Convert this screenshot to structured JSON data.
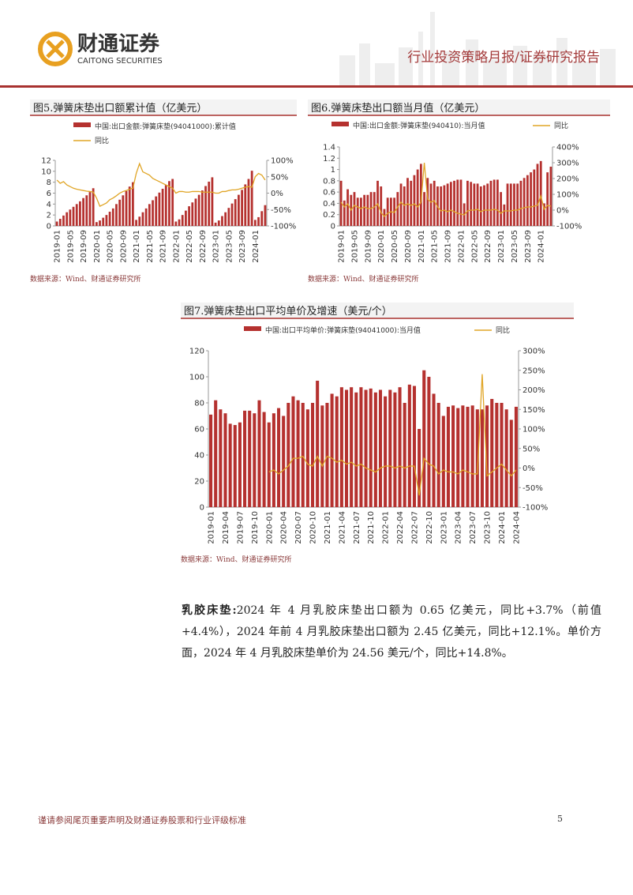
{
  "header": {
    "company": "财通证券",
    "company_en": "CAITONG SECURITIES",
    "report_type": "行业投资策略月报/证券研究报告"
  },
  "chart_data": [
    {
      "type": "combo",
      "title": "图5.弹簧床垫出口额累计值（亿美元）",
      "note": "数据来源：Wind、财通证券研究所",
      "categories": [
        "2019-01",
        null,
        null,
        null,
        "2019-05",
        null,
        null,
        null,
        "2019-09",
        null,
        null,
        null,
        "2020-01",
        null,
        null,
        null,
        "2020-05",
        null,
        null,
        null,
        "2020-09",
        null,
        null,
        null,
        "2021-01",
        null,
        null,
        null,
        "2021-05",
        null,
        null,
        null,
        "2021-09",
        null,
        null,
        null,
        "2022-01",
        null,
        null,
        null,
        "2022-05",
        null,
        null,
        null,
        "2022-09",
        null,
        null,
        null,
        "2023-01",
        null,
        null,
        null,
        "2023-05",
        null,
        null,
        null,
        "2023-09",
        null,
        null,
        null,
        "2024-01",
        null,
        null,
        null
      ],
      "series": [
        {
          "name": "中国:出口金额:弹簧床垫(94041000):累计值",
          "color": "#b5312f",
          "values": [
            0.8,
            1.3,
            1.9,
            2.5,
            3.0,
            3.5,
            4.0,
            4.5,
            5.1,
            5.6,
            6.2,
            6.9,
            0.7,
            1.0,
            1.5,
            2.0,
            2.6,
            3.2,
            4.0,
            4.8,
            5.6,
            6.4,
            7.2,
            8.0,
            1.1,
            1.7,
            2.5,
            3.2,
            4.0,
            4.7,
            5.4,
            6.1,
            6.8,
            7.5,
            8.2,
            8.6,
            0.8,
            1.2,
            2.0,
            2.8,
            3.6,
            4.3,
            5.0,
            5.7,
            6.5,
            7.3,
            8.1,
            8.9,
            0.6,
            1.0,
            1.8,
            2.5,
            3.3,
            4.1,
            4.9,
            5.7,
            6.6,
            7.6,
            8.6,
            10.1,
            1.1,
            1.6,
            2.7,
            3.8
          ]
        },
        {
          "name": "同比",
          "color": "#e0a526",
          "axis": "y2",
          "values": [
            40,
            30,
            35,
            25,
            20,
            15,
            12,
            10,
            8,
            6,
            5,
            3,
            -15,
            -40,
            -35,
            -30,
            -20,
            -15,
            -8,
            0,
            5,
            8,
            12,
            15,
            60,
            90,
            65,
            60,
            55,
            45,
            40,
            35,
            30,
            25,
            20,
            15,
            0,
            5,
            5,
            3,
            3,
            5,
            5,
            5,
            3,
            3,
            3,
            3,
            0,
            0,
            5,
            5,
            8,
            10,
            10,
            12,
            15,
            18,
            20,
            18,
            50,
            60,
            55,
            40
          ]
        }
      ],
      "ylim": [
        0,
        12
      ],
      "yticks": [
        0,
        2,
        4,
        6,
        8,
        10,
        12
      ],
      "y2lim": [
        -100,
        100
      ],
      "y2ticks": [
        {
          "value": -100,
          "label": "-100%"
        },
        {
          "value": -50,
          "label": "-50%"
        },
        {
          "value": 0,
          "label": "0%"
        },
        {
          "value": 50,
          "label": "50%"
        },
        {
          "value": 100,
          "label": "100%"
        }
      ]
    },
    {
      "type": "combo",
      "title": "图6.弹簧床垫出口额当月值（亿美元）",
      "note": "数据来源：Wind、财通证券研究所",
      "categories": [
        "2019-01",
        null,
        null,
        null,
        "2019-05",
        null,
        null,
        null,
        "2019-09",
        null,
        null,
        null,
        "2020-01",
        null,
        null,
        null,
        "2020-05",
        null,
        null,
        null,
        "2020-09",
        null,
        null,
        null,
        "2021-01",
        null,
        null,
        null,
        "2021-05",
        null,
        null,
        null,
        "2021-09",
        null,
        null,
        null,
        "2022-01",
        null,
        null,
        null,
        "2022-05",
        null,
        null,
        null,
        "2022-09",
        null,
        null,
        null,
        "2023-01",
        null,
        null,
        null,
        "2023-05",
        null,
        null,
        null,
        "2023-09",
        null,
        null,
        null,
        "2024-01",
        null,
        null,
        null
      ],
      "series": [
        {
          "name": "中国:出口金额:弹簧床垫(940410):当月值",
          "color": "#b5312f",
          "values": [
            0.8,
            0.45,
            0.65,
            0.55,
            0.6,
            0.5,
            0.5,
            0.55,
            0.55,
            0.6,
            0.6,
            0.8,
            0.7,
            0.3,
            0.5,
            0.5,
            0.5,
            0.6,
            0.75,
            0.7,
            0.85,
            0.8,
            0.9,
            1.0,
            1.1,
            0.6,
            0.85,
            0.75,
            0.8,
            0.7,
            0.7,
            0.72,
            0.75,
            0.78,
            0.8,
            0.82,
            0.82,
            0.4,
            0.8,
            0.78,
            0.75,
            0.75,
            0.7,
            0.72,
            0.75,
            0.8,
            0.82,
            0.82,
            0.6,
            0.38,
            0.75,
            0.75,
            0.75,
            0.75,
            0.8,
            0.85,
            0.9,
            0.95,
            1.0,
            1.1,
            1.15,
            0.4,
            0.95,
            1.05
          ]
        },
        {
          "name": "同比",
          "color": "#e0a526",
          "axis": "y2",
          "values": [
            50,
            20,
            40,
            0,
            30,
            20,
            10,
            20,
            10,
            10,
            20,
            40,
            -15,
            -40,
            -20,
            -10,
            -15,
            20,
            50,
            30,
            40,
            30,
            40,
            20,
            50,
            300,
            70,
            50,
            60,
            20,
            -5,
            0,
            -10,
            0,
            -10,
            -20,
            -25,
            -30,
            -5,
            0,
            0,
            5,
            -10,
            0,
            0,
            0,
            5,
            0,
            -20,
            -5,
            -5,
            -5,
            0,
            0,
            10,
            15,
            20,
            20,
            25,
            30,
            90,
            5,
            30,
            25
          ]
        }
      ],
      "ylim": [
        0,
        1.4
      ],
      "yticks": [
        0,
        0.2,
        0.4,
        0.6,
        0.8,
        1,
        1.2,
        1.4
      ],
      "y2lim": [
        -100,
        400
      ],
      "y2ticks": [
        {
          "value": -100,
          "label": "-100%"
        },
        {
          "value": 0,
          "label": "0%"
        },
        {
          "value": 100,
          "label": "100%"
        },
        {
          "value": 200,
          "label": "200%"
        },
        {
          "value": 300,
          "label": "300%"
        },
        {
          "value": 400,
          "label": "400%"
        }
      ]
    },
    {
      "type": "combo",
      "title": "图7.弹簧床垫出口平均单价及增速（美元/个）",
      "note": "数据来源：Wind、财通证券研究所",
      "categories": [
        "2019-01",
        null,
        null,
        "2019-04",
        null,
        null,
        "2019-07",
        null,
        null,
        "2019-10",
        null,
        null,
        "2020-01",
        null,
        null,
        "2020-04",
        null,
        null,
        "2020-07",
        null,
        null,
        "2020-10",
        null,
        null,
        "2021-01",
        null,
        null,
        "2021-04",
        null,
        null,
        "2021-07",
        null,
        null,
        "2021-10",
        null,
        null,
        "2022-01",
        null,
        null,
        "2022-04",
        null,
        null,
        "2022-07",
        null,
        null,
        "2022-10",
        null,
        null,
        "2023-01",
        null,
        null,
        "2023-04",
        null,
        null,
        "2023-07",
        null,
        null,
        "2023-10",
        null,
        null,
        "2024-01",
        null,
        null,
        "2024-04"
      ],
      "series": [
        {
          "name": "中国:出口平均单价:弹簧床垫(94041000):当月值",
          "color": "#b5312f",
          "values": [
            71,
            82,
            75,
            72,
            64,
            63,
            65,
            74,
            74,
            72,
            82,
            73,
            65,
            72,
            76,
            70,
            80,
            85,
            82,
            80,
            75,
            80,
            97,
            78,
            80,
            87,
            85,
            92,
            90,
            92,
            88,
            92,
            90,
            91,
            88,
            90,
            85,
            90,
            88,
            92,
            80,
            94,
            93,
            60,
            105,
            100,
            87,
            80,
            70,
            77,
            78,
            76,
            78,
            77,
            78,
            75,
            75,
            78,
            83,
            80,
            80,
            75,
            67,
            77
          ]
        },
        {
          "name": "同比",
          "color": "#e0a526",
          "axis": "y2",
          "values": [
            null,
            null,
            null,
            null,
            null,
            null,
            null,
            null,
            null,
            null,
            null,
            null,
            -10,
            -5,
            -15,
            -5,
            5,
            25,
            25,
            30,
            10,
            5,
            30,
            5,
            30,
            25,
            15,
            20,
            10,
            15,
            5,
            10,
            0,
            -5,
            -10,
            0,
            5,
            5,
            0,
            5,
            0,
            5,
            5,
            -70,
            25,
            10,
            5,
            -15,
            -5,
            -10,
            -10,
            -15,
            -5,
            -10,
            -15,
            -15,
            240,
            -20,
            -10,
            0,
            10,
            -5,
            -20,
            -5
          ]
        }
      ],
      "ylim": [
        0,
        120
      ],
      "yticks": [
        0,
        20,
        40,
        60,
        80,
        100,
        120
      ],
      "y2lim": [
        -100,
        300
      ],
      "y2ticks": [
        {
          "value": -100,
          "label": "-100%"
        },
        {
          "value": -50,
          "label": "-50%"
        },
        {
          "value": 0,
          "label": "0%"
        },
        {
          "value": 50,
          "label": "50%"
        },
        {
          "value": 100,
          "label": "100%"
        },
        {
          "value": 150,
          "label": "150%"
        },
        {
          "value": 200,
          "label": "200%"
        },
        {
          "value": 250,
          "label": "250%"
        },
        {
          "value": 300,
          "label": "300%"
        }
      ]
    }
  ],
  "paragraph": {
    "lead": "乳胶床垫:",
    "text": "2024 年 4 月乳胶床垫出口额为 0.65 亿美元，同比+3.7%（前值+4.4%），2024 年前 4 月乳胶床垫出口额为 2.45 亿美元，同比+12.1%。单价方面，2024 年 4 月乳胶床垫单价为 24.56 美元/个，同比+14.8%。"
  },
  "footer": {
    "disclaimer": "谨请参阅尾页重要声明及财通证券股票和行业评级标准",
    "page": 5
  }
}
